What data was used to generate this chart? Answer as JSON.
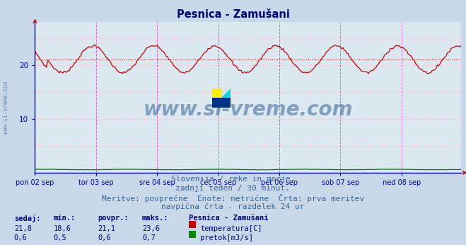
{
  "title": "Pesnica - Zamušani",
  "title_color": "#000080",
  "fig_bg_color": "#c8d8e8",
  "plot_bg_color": "#dce8f0",
  "grid_h_color": "#ffb0b0",
  "grid_h_style": "dotted",
  "vline_color": "#cc44cc",
  "vline_style": "dashed",
  "axis_color": "#0000cc",
  "temp_color": "#cc0000",
  "flow_color": "#008800",
  "avg_color": "#cc0000",
  "n_points": 336,
  "day_ticks": [
    0,
    48,
    96,
    144,
    192,
    240,
    288
  ],
  "day_labels": [
    "pon 02 sep",
    "tor 03 sep",
    "sre 04 sep",
    "čet 05 sep",
    "pet 06 sep",
    "sob 07 sep",
    "ned 08 sep"
  ],
  "ylim": [
    0,
    28
  ],
  "yticks": [
    10,
    20
  ],
  "avg_temp": 21.1,
  "min_temp": 18.6,
  "max_temp": 23.6,
  "cur_temp": "21,8",
  "cur_flow": "0,6",
  "min_temp_s": "18,6",
  "min_flow_s": "0,5",
  "avg_temp_s": "21,1",
  "avg_flow_s": "0,6",
  "max_temp_s": "23,6",
  "max_flow_s": "0,7",
  "subtitle_color": "#336699",
  "subtitle_fontsize": 8,
  "stat_label_color": "#000080",
  "stat_val_color": "#000080",
  "watermark_color": "#336699",
  "watermark_alpha": 0.55,
  "left_wm_color": "#336699"
}
